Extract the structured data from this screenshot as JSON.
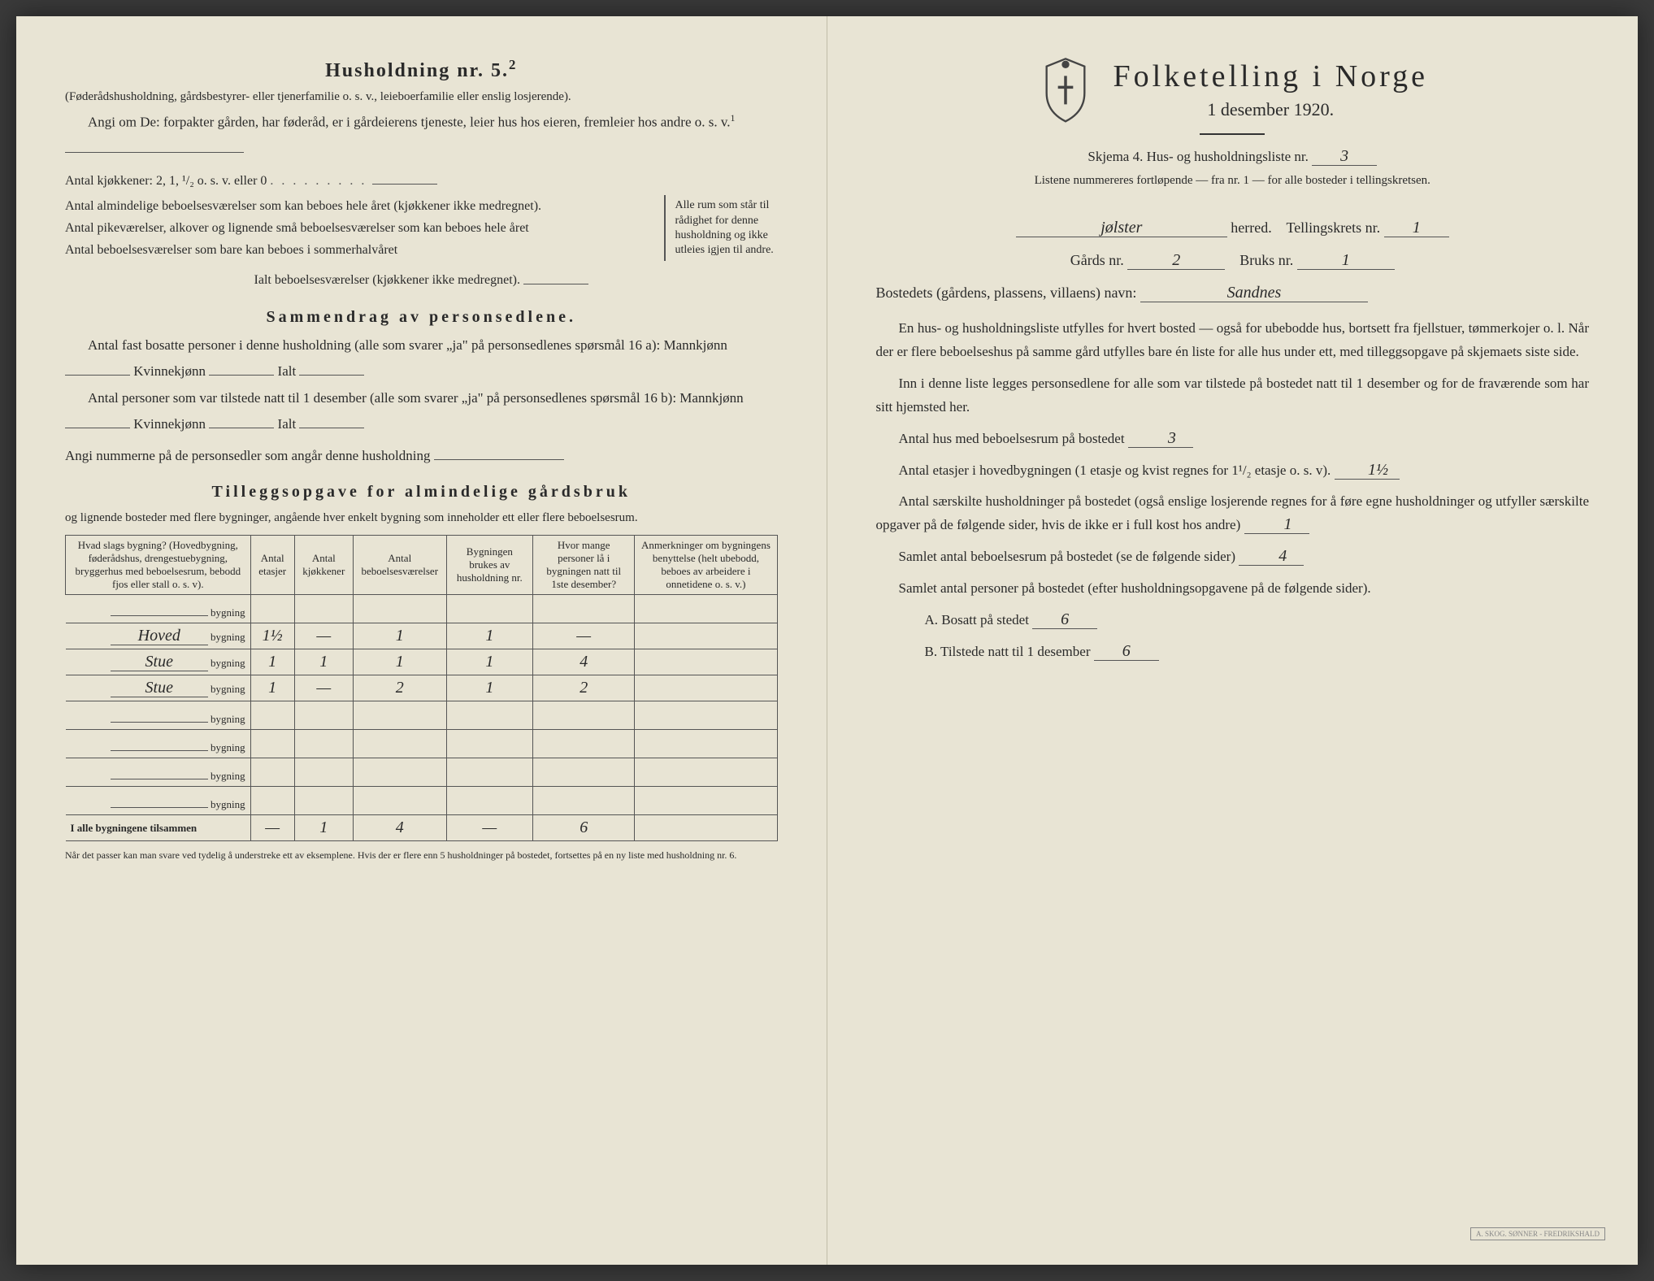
{
  "left": {
    "h1": "Husholdning nr. 5.",
    "h1_sup": "2",
    "intro1": "(Føderådshusholdning, gårdsbestyrer- eller tjenerfamilie o. s. v., leieboerfamilie eller enslig losjerende).",
    "intro2": "Angi om De: forpakter gården, har føderåd, er i gårdeierens tjeneste, leier hus hos eieren, fremleier hos andre o. s. v.",
    "intro2_sup": "1",
    "kjokken_label": "Antal kjøkkener: 2, 1, ¹/₂ o. s. v. eller 0",
    "brace_lines": [
      "Antal almindelige beboelsesværelser som kan beboes hele året (kjøkkener ikke medregnet).",
      "Antal pikeværelser, alkover og lignende små beboelsesværelser som kan beboes hele året",
      "Antal beboelsesværelser som bare kan beboes i sommerhalvåret"
    ],
    "brace_note": "Alle rum som står til rådighet for denne husholdning og ikke utleies igjen til andre.",
    "ialt_label": "Ialt beboelsesværelser (kjøkkener ikke medregnet).",
    "h2_sammen": "Sammendrag av personsedlene.",
    "sammen1": "Antal fast bosatte personer i denne husholdning (alle som svarer „ja\" på personsedlenes spørsmål 16 a): Mannkjønn",
    "sammen_kv": "Kvinnekjønn",
    "sammen_ialt": "Ialt",
    "sammen2": "Antal personer som var tilstede natt til 1 desember (alle som svarer „ja\" på personsedlenes spørsmål 16 b): Mannkjønn",
    "angi_num": "Angi nummerne på de personsedler som angår denne husholdning",
    "h2_tillegg": "Tilleggsopgave for almindelige gårdsbruk",
    "tillegg_intro": "og lignende bosteder med flere bygninger, angående hver enkelt bygning som inneholder ett eller flere beboelsesrum.",
    "table": {
      "headers": [
        "Hvad slags bygning?\n(Hovedbygning, føderådshus, drengestuebygning, bryggerhus med beboelsesrum, bebodd fjos eller stall o. s. v).",
        "Antal etasjer",
        "Antal kjøkkener",
        "Antal beboelsesværelser",
        "Bygningen brukes av husholdning nr.",
        "Hvor mange personer lå i bygningen natt til 1ste desember?",
        "Anmerkninger om bygningens benyttelse (helt ubebodd, beboes av arbeidere i onnetidene o. s. v.)"
      ],
      "row_suffix": "bygning",
      "rows": [
        {
          "name": "",
          "vals": [
            "",
            "",
            "",
            "",
            "",
            ""
          ]
        },
        {
          "name": "Hoved",
          "vals": [
            "1½",
            "—",
            "1",
            "1",
            "—",
            ""
          ]
        },
        {
          "name": "Stue",
          "vals": "1 1 1 1 4 "
        },
        {
          "name": "Stue",
          "vals": [
            "1",
            "—",
            "2",
            "1",
            "2",
            ""
          ]
        },
        {
          "name": "",
          "vals": [
            "",
            "",
            "",
            "",
            "",
            ""
          ]
        },
        {
          "name": "",
          "vals": [
            "",
            "",
            "",
            "",
            "",
            ""
          ]
        },
        {
          "name": "",
          "vals": [
            "",
            "",
            "",
            "",
            "",
            ""
          ]
        },
        {
          "name": "",
          "vals": [
            "",
            "",
            "",
            "",
            "",
            ""
          ]
        }
      ],
      "total_label": "I alle bygningene tilsammen",
      "total_vals": [
        "—",
        "1",
        "4",
        "—",
        "6",
        ""
      ]
    },
    "footnote": "Når det passer kan man svare ved tydelig å understreke ett av eksemplene.\nHvis der er flere enn 5 husholdninger på bostedet, fortsettes på en ny liste med husholdning nr. 6."
  },
  "right": {
    "title": "Folketelling i Norge",
    "subtitle": "1 desember 1920.",
    "skjema": "Skjema 4. Hus- og husholdningsliste nr.",
    "skjema_val": "3",
    "listene": "Listene nummereres fortløpende — fra nr. 1 — for alle bosteder i tellingskretsen.",
    "herred_val": "jølster",
    "herred_label": "herred.",
    "tellingskrets_label": "Tellingskrets nr.",
    "tellingskrets_val": "1",
    "gards_label": "Gårds nr.",
    "gards_val": "2",
    "bruks_label": "Bruks nr.",
    "bruks_val": "1",
    "bosted_label": "Bostedets (gårdens, plassens, villaens) navn:",
    "bosted_val": "Sandnes",
    "para1": "En hus- og husholdningsliste utfylles for hvert bosted — også for ubebodde hus, bortsett fra fjellstuer, tømmerkojer o. l. Når der er flere beboelseshus på samme gård utfylles bare én liste for alle hus under ett, med tilleggsopgave på skjemaets siste side.",
    "para2": "Inn i denne liste legges personsedlene for alle som var tilstede på bostedet natt til 1 desember og for de fraværende som har sitt hjemsted her.",
    "antal_hus_label": "Antal hus med beboelsesrum på bostedet",
    "antal_hus_val": "3",
    "antal_etasjer_label": "Antal etasjer i hovedbygningen (1 etasje og kvist regnes for 1¹/₂ etasje o. s. v).",
    "antal_etasjer_val": "1½",
    "antal_hush_label": "Antal særskilte husholdninger på bostedet (også enslige losjerende regnes for å føre egne husholdninger og utfyller særskilte opgaver på de følgende sider, hvis de ikke er i full kost hos andre)",
    "antal_hush_val": "1",
    "samlet_rum_label": "Samlet antal beboelsesrum på bostedet (se de følgende sider)",
    "samlet_rum_val": "4",
    "samlet_pers_label": "Samlet antal personer på bostedet (efter husholdningsopgavene på de følgende sider).",
    "a_label": "A. Bosatt på stedet",
    "a_val": "6",
    "b_label": "B. Tilstede natt til 1 desember",
    "b_val": "6",
    "stamp": "A. SKOG. SØNNER - FREDRIKSHALD"
  }
}
